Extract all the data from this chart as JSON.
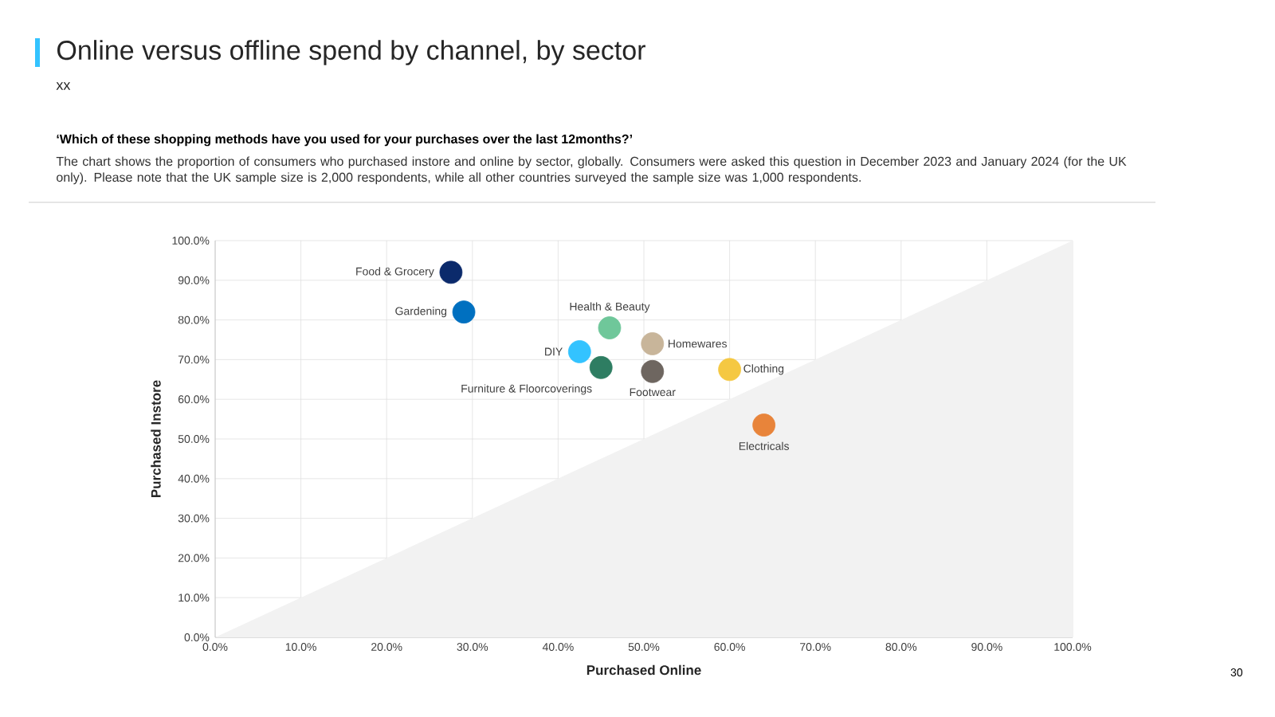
{
  "chart_data": {
    "type": "scatter",
    "title": "Online versus offline spend by channel, by sector",
    "subtitle": "xx",
    "xlabel": "Purchased Online",
    "ylabel": "Purchased Instore",
    "annotations": [
      "‘Which of these shopping methods have you used for your purchases over the last 12months?’",
      "The chart shows the proportion of consumers who purchased instore and online by sector, globally. Consumers were asked this question in December 2023 and January 2024 (for the UK only). Please note that the UK sample size is 2,000 respondents, while all other countries surveyed the sample size was 1,000 respondents.",
      "30"
    ],
    "xlim": [
      0,
      100
    ],
    "ylim": [
      0,
      100
    ],
    "xticks": [
      {
        "value": 0,
        "label": "0.0%"
      },
      {
        "value": 10,
        "label": "10.0%"
      },
      {
        "value": 20,
        "label": "20.0%"
      },
      {
        "value": 30,
        "label": "30.0%"
      },
      {
        "value": 40,
        "label": "40.0%"
      },
      {
        "value": 50,
        "label": "50.0%"
      },
      {
        "value": 60,
        "label": "60.0%"
      },
      {
        "value": 70,
        "label": "70.0%"
      },
      {
        "value": 80,
        "label": "80.0%"
      },
      {
        "value": 90,
        "label": "90.0%"
      },
      {
        "value": 100,
        "label": "100.0%"
      }
    ],
    "yticks": [
      {
        "value": 0,
        "label": "0.0%"
      },
      {
        "value": 10,
        "label": "10.0%"
      },
      {
        "value": 20,
        "label": "20.0%"
      },
      {
        "value": 30,
        "label": "30.0%"
      },
      {
        "value": 40,
        "label": "40.0%"
      },
      {
        "value": 50,
        "label": "50.0%"
      },
      {
        "value": 60,
        "label": "60.0%"
      },
      {
        "value": 70,
        "label": "70.0%"
      },
      {
        "value": 80,
        "label": "80.0%"
      },
      {
        "value": 90,
        "label": "90.0%"
      },
      {
        "value": 100,
        "label": "100.0%"
      }
    ],
    "grid": true,
    "series": [
      {
        "type": "area",
        "color": "#f2f2f2",
        "x": [
          0,
          100
        ],
        "values": [
          0,
          100
        ]
      },
      {
        "name": "Food & Grocery",
        "marker": "circle",
        "color": "#0b2a6b",
        "x": [
          27.5
        ],
        "values": [
          92
        ]
      },
      {
        "name": "Gardening",
        "marker": "circle",
        "color": "#0070c0",
        "x": [
          29
        ],
        "values": [
          82
        ]
      },
      {
        "name": "DIY",
        "marker": "circle",
        "color": "#33c3ff",
        "x": [
          42.5
        ],
        "values": [
          72
        ]
      },
      {
        "name": "Health & Beauty",
        "marker": "circle",
        "color": "#6fc79a",
        "x": [
          46
        ],
        "values": [
          78
        ]
      },
      {
        "name": "Furniture & Floorcoverings",
        "marker": "circle",
        "color": "#2e7d62",
        "x": [
          45
        ],
        "values": [
          68
        ]
      },
      {
        "name": "Homewares",
        "marker": "circle",
        "color": "#c8b59a",
        "x": [
          51
        ],
        "values": [
          74
        ]
      },
      {
        "name": "Footwear",
        "marker": "circle",
        "color": "#6e6660",
        "x": [
          51
        ],
        "values": [
          67
        ]
      },
      {
        "name": "Clothing",
        "marker": "circle",
        "color": "#f5c842",
        "x": [
          60
        ],
        "values": [
          67.5
        ]
      },
      {
        "name": "Electricals",
        "marker": "circle",
        "color": "#e8843a",
        "x": [
          64
        ],
        "values": [
          53.5
        ]
      }
    ]
  }
}
